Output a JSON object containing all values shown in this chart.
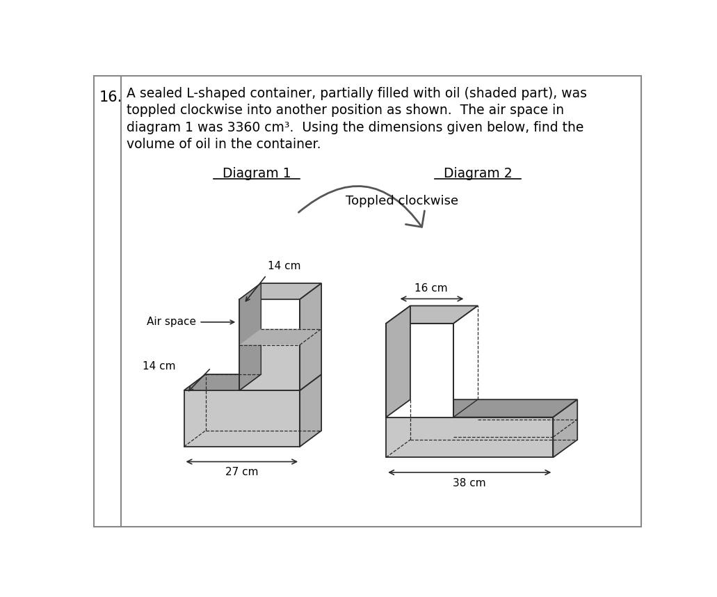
{
  "title_num": "16.",
  "title_text_line1": "A sealed L-shaped container, partially filled with oil (shaded part), was",
  "title_text_line2": "toppled clockwise into another position as shown.  The air space in",
  "title_text_line3": "diagram 1 was 3360 cm³.  Using the dimensions given below, find the",
  "title_text_line4": "volume of oil in the container.",
  "diagram1_label": "Diagram 1",
  "diagram2_label": "Diagram 2",
  "arrow_label": "Toppled clockwise",
  "dim1_top": "14 cm",
  "dim1_bottom": "14 cm",
  "dim1_width": "27 cm",
  "dim2_top": "16 cm",
  "dim2_width": "38 cm",
  "airspace_label": "Air space",
  "shade_light": "#c8c8c8",
  "shade_mid": "#b0b0b0",
  "shade_dark": "#989898",
  "line_color": "#2a2a2a",
  "white": "#ffffff",
  "top_face": "#bebebe"
}
